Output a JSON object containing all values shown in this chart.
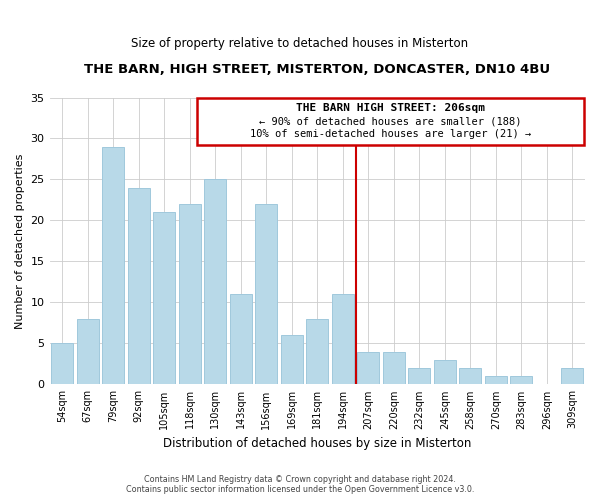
{
  "title": "THE BARN, HIGH STREET, MISTERTON, DONCASTER, DN10 4BU",
  "subtitle": "Size of property relative to detached houses in Misterton",
  "xlabel": "Distribution of detached houses by size in Misterton",
  "ylabel": "Number of detached properties",
  "footer_lines": [
    "Contains HM Land Registry data © Crown copyright and database right 2024.",
    "Contains public sector information licensed under the Open Government Licence v3.0."
  ],
  "bar_labels": [
    "54sqm",
    "67sqm",
    "79sqm",
    "92sqm",
    "105sqm",
    "118sqm",
    "130sqm",
    "143sqm",
    "156sqm",
    "169sqm",
    "181sqm",
    "194sqm",
    "207sqm",
    "220sqm",
    "232sqm",
    "245sqm",
    "258sqm",
    "270sqm",
    "283sqm",
    "296sqm",
    "309sqm"
  ],
  "bar_heights": [
    5,
    8,
    29,
    24,
    21,
    22,
    25,
    11,
    22,
    6,
    8,
    11,
    4,
    4,
    2,
    3,
    2,
    1,
    1,
    0,
    2
  ],
  "bar_color": "#b8d9e8",
  "bar_edgecolor": "#a0c8dc",
  "vline_color": "#cc0000",
  "ylim": [
    0,
    35
  ],
  "yticks": [
    0,
    5,
    10,
    15,
    20,
    25,
    30,
    35
  ],
  "annotation_title": "THE BARN HIGH STREET: 206sqm",
  "annotation_line1": "← 90% of detached houses are smaller (188)",
  "annotation_line2": "10% of semi-detached houses are larger (21) →",
  "background_color": "#ffffff",
  "grid_color": "#cccccc"
}
